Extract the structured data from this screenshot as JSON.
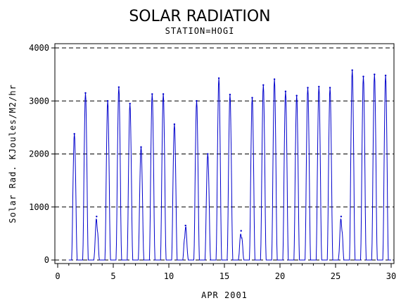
{
  "chart_data": {
    "type": "line",
    "title": "SOLAR RADIATION",
    "subtitle": "STATION=HOGI",
    "xlabel": "APR 2001",
    "ylabel": "Solar Rad. KJoules/M2/hr",
    "xlim": [
      0,
      30
    ],
    "ylim": [
      0,
      4000
    ],
    "x_ticks": [
      0,
      5,
      10,
      15,
      20,
      25,
      30
    ],
    "y_ticks": [
      0,
      1000,
      2000,
      3000,
      4000
    ],
    "grid": "dashed-horizontal",
    "line_color": "#0000cc",
    "daily_peaks": [
      {
        "day": 1,
        "peak": 2380
      },
      {
        "day": 2,
        "peak": 3150
      },
      {
        "day": 3,
        "peak": 820
      },
      {
        "day": 4,
        "peak": 3000
      },
      {
        "day": 5,
        "peak": 3260
      },
      {
        "day": 6,
        "peak": 2950
      },
      {
        "day": 7,
        "peak": 2130
      },
      {
        "day": 8,
        "peak": 3130
      },
      {
        "day": 9,
        "peak": 3130
      },
      {
        "day": 10,
        "peak": 2560
      },
      {
        "day": 11,
        "peak": 650
      },
      {
        "day": 12,
        "peak": 3000
      },
      {
        "day": 13,
        "peak": 2000
      },
      {
        "day": 14,
        "peak": 3430
      },
      {
        "day": 15,
        "peak": 3120
      },
      {
        "day": 16,
        "peak": 550
      },
      {
        "day": 17,
        "peak": 3060
      },
      {
        "day": 18,
        "peak": 3300
      },
      {
        "day": 19,
        "peak": 3410
      },
      {
        "day": 20,
        "peak": 3180
      },
      {
        "day": 21,
        "peak": 3100
      },
      {
        "day": 22,
        "peak": 3250
      },
      {
        "day": 23,
        "peak": 3270
      },
      {
        "day": 24,
        "peak": 3250
      },
      {
        "day": 25,
        "peak": 820
      },
      {
        "day": 26,
        "peak": 3580
      },
      {
        "day": 27,
        "peak": 3460
      },
      {
        "day": 28,
        "peak": 3500
      },
      {
        "day": 29,
        "peak": 3480
      }
    ]
  }
}
